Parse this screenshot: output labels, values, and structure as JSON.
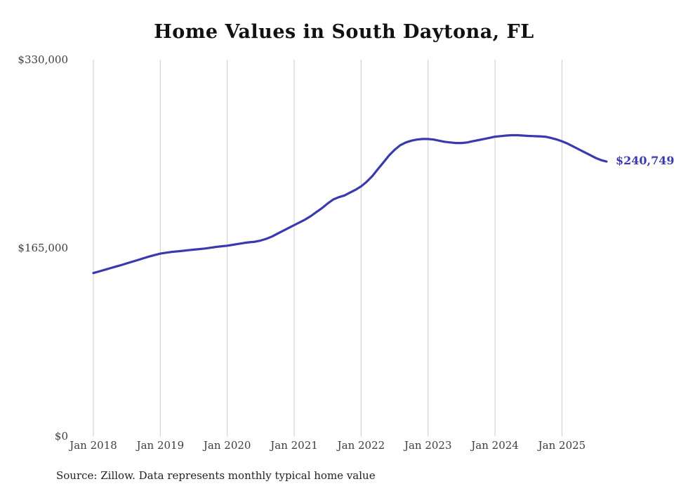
{
  "chart": {
    "title": "Home Values in South Daytona, FL",
    "end_label": "$240,749",
    "source": "Source: Zillow. Data represents monthly typical home value"
  },
  "chart_data": {
    "type": "line",
    "title": "Home Values in South Daytona, FL",
    "x_start": "Jan 2018",
    "x_end": "Sep 2025",
    "x_interval": "monthly",
    "x_tick_labels": [
      "Jan 2018",
      "Jan 2019",
      "Jan 2020",
      "Jan 2021",
      "Jan 2022",
      "Jan 2023",
      "Jan 2024",
      "Jan 2025"
    ],
    "y_tick_labels": [
      "$0",
      "$165,000",
      "$330,000"
    ],
    "ylim": [
      0,
      330000
    ],
    "grid": "vertical-only",
    "legend": "none",
    "line_color": "#3A3AAE",
    "annotation": "$240,749",
    "last_value": 240749,
    "series": [
      {
        "name": "Typical home value",
        "values": [
          143000,
          144400,
          145800,
          147200,
          148600,
          150000,
          151500,
          153000,
          154500,
          156000,
          157500,
          158800,
          160000,
          160800,
          161500,
          162000,
          162500,
          163000,
          163500,
          164000,
          164500,
          165200,
          165900,
          166500,
          167000,
          167800,
          168600,
          169400,
          170000,
          170500,
          171500,
          173000,
          175000,
          177500,
          180000,
          182500,
          185000,
          187500,
          190000,
          193000,
          196500,
          200000,
          204000,
          207500,
          209500,
          211000,
          213500,
          216000,
          219000,
          223000,
          228000,
          234000,
          240000,
          246000,
          251000,
          255000,
          257500,
          259000,
          260000,
          260500,
          260500,
          260000,
          259000,
          258000,
          257500,
          257000,
          257000,
          257500,
          258500,
          259500,
          260500,
          261500,
          262500,
          263000,
          263500,
          263800,
          263800,
          263500,
          263200,
          263000,
          262800,
          262500,
          261500,
          260200,
          258500,
          256500,
          254000,
          251500,
          249000,
          246500,
          244000,
          242000,
          240749
        ]
      }
    ],
    "source": "Source: Zillow. Data represents monthly typical home value"
  }
}
